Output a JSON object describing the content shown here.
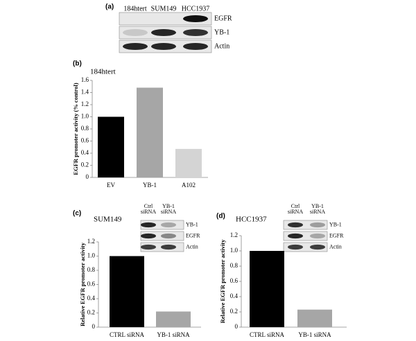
{
  "chart_data": [
    {
      "type": "bar",
      "panel_label": "(b)",
      "title": "184htert",
      "y_label": "EGFR promoter activity (% control)",
      "categories": [
        "EV",
        "YB-1",
        "A102"
      ],
      "values": [
        1.0,
        1.48,
        0.47
      ],
      "colors": [
        "#000000",
        "#a6a6a6",
        "#d4d4d4"
      ],
      "ylim": [
        0,
        1.6
      ],
      "yticks": [
        0,
        0.2,
        0.4,
        0.6,
        0.8,
        {
          "value": 1,
          "label": "1.0"
        },
        1.2,
        1.4,
        1.6
      ]
    },
    {
      "type": "bar",
      "panel_label": "(c)",
      "title": "SUM149",
      "y_label": "Relative EGFR promoter activity",
      "categories": [
        "CTRL siRNA",
        "YB-1 siRNA"
      ],
      "values": [
        1.0,
        0.22
      ],
      "colors": [
        "#000000",
        "#a6a6a6"
      ],
      "ylim": [
        0,
        1.2
      ],
      "yticks": [
        0,
        0.2,
        0.4,
        0.6,
        0.8,
        {
          "value": 1,
          "label": "1.0"
        },
        1.2
      ]
    },
    {
      "type": "bar",
      "panel_label": "(d)",
      "title": "HCC1937",
      "y_label": "Relative EGFR promoter activity",
      "categories": [
        "CTRL siRNA",
        "YB-1 siRNA"
      ],
      "values": [
        1.0,
        0.23
      ],
      "colors": [
        "#000000",
        "#a6a6a6"
      ],
      "ylim": [
        0,
        1.2
      ],
      "yticks": [
        0,
        0.2,
        0.4,
        0.6,
        0.8,
        {
          "value": 1,
          "label": "1.0"
        },
        1.2
      ]
    }
  ],
  "blots": [
    {
      "panel_label": "(a)",
      "lanes": [
        [
          "184htert"
        ],
        [
          "SUM149"
        ],
        [
          "HCC1937"
        ]
      ],
      "rows": [
        "EGFR",
        "YB-1",
        "Actin"
      ]
    },
    {
      "lanes": [
        [
          "Ctrl",
          "siRNA"
        ],
        [
          "YB-1",
          "siRNA"
        ]
      ],
      "rows": [
        "YB-1",
        "EGFR",
        "Actin"
      ]
    },
    {
      "lanes": [
        [
          "Ctrl",
          "siRNA"
        ],
        [
          "YB-1",
          "siRNA"
        ]
      ],
      "rows": [
        "YB-1",
        "EGFR",
        "Actin"
      ]
    }
  ]
}
